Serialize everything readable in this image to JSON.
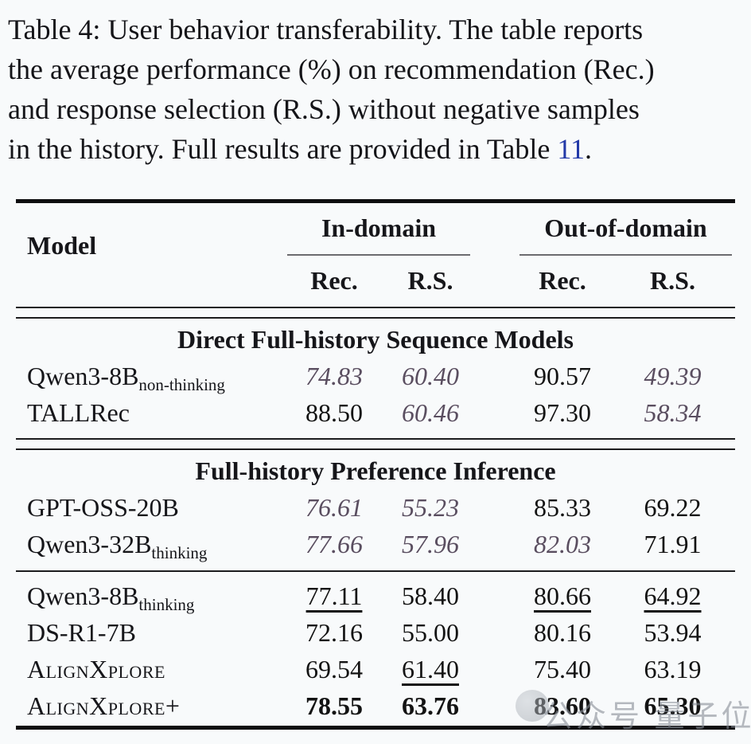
{
  "caption": {
    "line1": "Table 4: User behavior transferability. The table reports",
    "line2": "the average performance (%) on recommendation (Rec.)",
    "line3": "and response selection (R.S.) without negative samples",
    "line4_prefix": "in the history. Full results are provided in Table ",
    "line4_link": "11",
    "line4_suffix": "."
  },
  "colors": {
    "link_blue": "#2239a8",
    "italic_value": "#5a4e60",
    "text": "#131313",
    "background": "#f8fafb"
  },
  "table": {
    "header": {
      "model_col": "Model",
      "group_in": "In-domain",
      "group_out": "Out-of-domain",
      "subcols": [
        "Rec.",
        "R.S.",
        "Rec.",
        "R.S."
      ]
    },
    "sections": [
      {
        "title": "Direct Full-history Sequence Models",
        "rows": [
          {
            "model": "Qwen3-8B",
            "sub": "non-thinking",
            "values": [
              "74.83",
              "60.40",
              "90.57",
              "49.39"
            ],
            "styles": [
              "it",
              "it",
              "n",
              "it"
            ]
          },
          {
            "model": "TALLRec",
            "sub": "",
            "values": [
              "88.50",
              "60.46",
              "97.30",
              "58.34"
            ],
            "styles": [
              "n",
              "it",
              "n",
              "it"
            ]
          }
        ]
      },
      {
        "title": "Full-history Preference Inference",
        "rows": [
          {
            "model": "GPT-OSS-20B",
            "sub": "",
            "values": [
              "76.61",
              "55.23",
              "85.33",
              "69.22"
            ],
            "styles": [
              "it",
              "it",
              "n",
              "n"
            ]
          },
          {
            "model": "Qwen3-32B",
            "sub": "thinking",
            "values": [
              "77.66",
              "57.96",
              "82.03",
              "71.91"
            ],
            "styles": [
              "it",
              "it",
              "it",
              "n"
            ]
          }
        ]
      },
      {
        "title": "",
        "rows": [
          {
            "model": "Qwen3-8B",
            "sub": "thinking",
            "values": [
              "77.11",
              "58.40",
              "80.66",
              "64.92"
            ],
            "styles": [
              "u",
              "n",
              "u",
              "u"
            ]
          },
          {
            "model": "DS-R1-7B",
            "sub": "",
            "values": [
              "72.16",
              "55.00",
              "80.16",
              "53.94"
            ],
            "styles": [
              "n",
              "n",
              "n",
              "n"
            ]
          },
          {
            "model": "AlignXplore",
            "sub": "",
            "values": [
              "69.54",
              "61.40",
              "75.40",
              "63.19"
            ],
            "styles": [
              "n",
              "u",
              "n",
              "n"
            ]
          },
          {
            "model": "AlignXplore+",
            "sub": "",
            "values": [
              "78.55",
              "63.76",
              "83.60",
              "65.30"
            ],
            "styles": [
              "b",
              "b",
              "b",
              "b"
            ]
          }
        ]
      }
    ]
  },
  "watermark": {
    "text": "公众号 量子位"
  }
}
